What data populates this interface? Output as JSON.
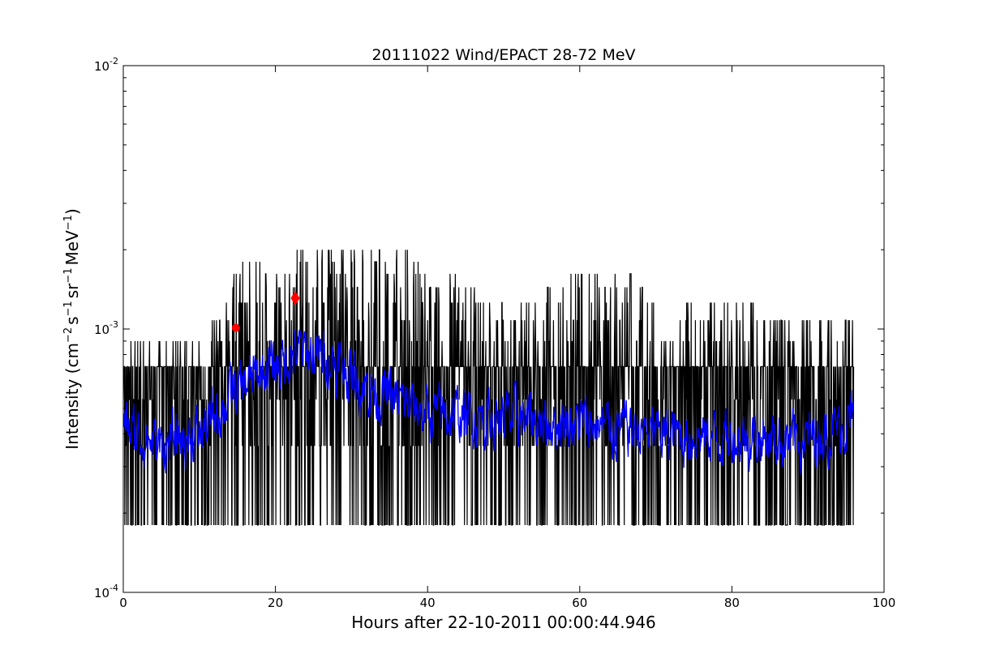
{
  "chart_data": {
    "type": "line",
    "title": "20111022 Wind/EPACT 28-72 MeV",
    "xlabel": "Hours after 22-10-2011 00:00:44.946",
    "ylabel_parts": {
      "pre": "Intensity (cm",
      "exp1": "−2",
      "mid1": "s",
      "exp2": "−1",
      "mid2": "sr",
      "exp3": "−1",
      "mid3": "MeV",
      "exp4": "−1",
      "post": ")"
    },
    "xlim": [
      0,
      100
    ],
    "ylim": [
      0.0001,
      0.01
    ],
    "yscale": "log",
    "grid": false,
    "x_ticks": [
      {
        "value": 0,
        "label": "0"
      },
      {
        "value": 20,
        "label": "20"
      },
      {
        "value": 40,
        "label": "40"
      },
      {
        "value": 60,
        "label": "60"
      },
      {
        "value": 80,
        "label": "80"
      },
      {
        "value": 100,
        "label": "100"
      }
    ],
    "y_ticks": [
      {
        "value": 0.0001,
        "base": "10",
        "exp": "-4"
      },
      {
        "value": 0.001,
        "base": "10",
        "exp": "-3"
      },
      {
        "value": 0.01,
        "base": "10",
        "exp": "-2"
      }
    ],
    "series": [
      {
        "color": "#000000",
        "style": "noisy-line",
        "x_range": [
          0,
          96
        ],
        "levels": [
          0.00018,
          0.00036,
          0.00054,
          0.00072,
          0.0009,
          0.00108,
          0.00126,
          0.00144,
          0.00162,
          0.0018,
          0.002,
          0.0023
        ],
        "envelope": [
          {
            "x": 0,
            "low": 0.00018,
            "high": 0.0009
          },
          {
            "x": 12,
            "low": 0.00018,
            "high": 0.0011
          },
          {
            "x": 15,
            "low": 0.00018,
            "high": 0.0018
          },
          {
            "x": 22,
            "low": 0.00018,
            "high": 0.002
          },
          {
            "x": 26,
            "low": 0.00018,
            "high": 0.0023
          },
          {
            "x": 38,
            "low": 0.00018,
            "high": 0.002
          },
          {
            "x": 50,
            "low": 0.00018,
            "high": 0.0013
          },
          {
            "x": 63,
            "low": 0.00018,
            "high": 0.0018
          },
          {
            "x": 75,
            "low": 0.00018,
            "high": 0.0013
          },
          {
            "x": 96,
            "low": 0.00018,
            "high": 0.0012
          }
        ]
      },
      {
        "color": "#0000ff",
        "style": "smoothed-line",
        "x_range": [
          0,
          96
        ],
        "trend": [
          {
            "x": 0,
            "y": 0.00042
          },
          {
            "x": 5,
            "y": 0.00036
          },
          {
            "x": 10,
            "y": 0.0004
          },
          {
            "x": 14,
            "y": 0.00055
          },
          {
            "x": 18,
            "y": 0.00068
          },
          {
            "x": 23,
            "y": 0.00082
          },
          {
            "x": 27,
            "y": 0.00078
          },
          {
            "x": 32,
            "y": 0.0006
          },
          {
            "x": 40,
            "y": 0.00048
          },
          {
            "x": 50,
            "y": 0.00046
          },
          {
            "x": 60,
            "y": 0.00044
          },
          {
            "x": 70,
            "y": 0.0004
          },
          {
            "x": 80,
            "y": 0.00039
          },
          {
            "x": 90,
            "y": 0.00038
          },
          {
            "x": 96,
            "y": 0.00045
          }
        ]
      }
    ],
    "markers": [
      {
        "shape": "circle",
        "color": "#ff0000",
        "x": 14.8,
        "y": 0.00101
      },
      {
        "shape": "diamond",
        "color": "#ff0000",
        "x": 22.6,
        "y": 0.00131
      }
    ]
  }
}
